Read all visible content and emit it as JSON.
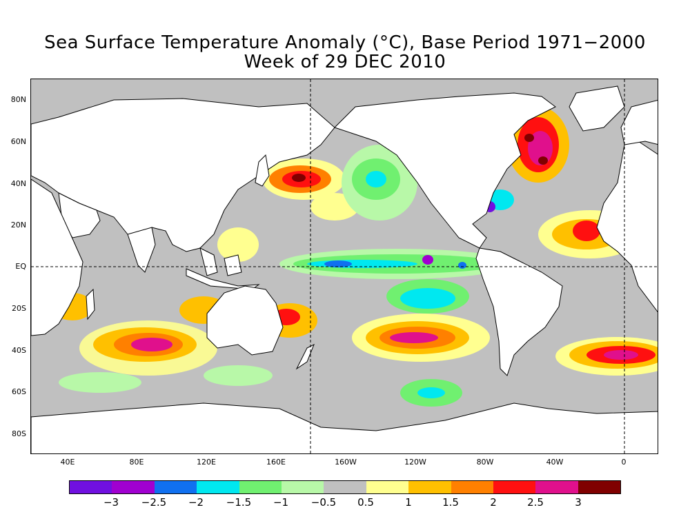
{
  "title": "Sea Surface Temperature Anomaly (°C), Base Period 1971−2000",
  "subtitle": "Week of 29 DEC 2010",
  "lat_labels": [
    "80N",
    "60N",
    "40N",
    "20N",
    "EQ",
    "20S",
    "40S",
    "60S",
    "80S"
  ],
  "lon_labels": [
    "40E",
    "80E",
    "120E",
    "160E",
    "160W",
    "120W",
    "80W",
    "40W",
    "0"
  ],
  "colorbar": {
    "colors": [
      "#7010e0",
      "#a000d0",
      "#1070f0",
      "#00e8f0",
      "#70f070",
      "#b8f8a8",
      "#c0c0c0",
      "#ffff90",
      "#ffc000",
      "#ff8000",
      "#ff1010",
      "#e0108c",
      "#800000"
    ],
    "labels": [
      "−3",
      "−2.5",
      "−2",
      "−1.5",
      "−1",
      "−0.5",
      "0.5",
      "1",
      "1.5",
      "2",
      "2.5",
      "3"
    ]
  },
  "map": {
    "projection": "cylindrical equidistant",
    "lon_range": "20E to 15E (wrapped)",
    "lat_range": "90S to 90N",
    "background_anomaly": "near zero (grey)",
    "features": [
      {
        "region": "North Atlantic / Labrador Sea",
        "anomaly": "≥ 3 warm"
      },
      {
        "region": "NW Pacific near Japan (40N 170E)",
        "anomaly": "≥ 3 warm"
      },
      {
        "region": "South Pacific (40S 120W)",
        "anomaly": "2.5–3 warm"
      },
      {
        "region": "South Indian Ocean (40S 80E)",
        "anomaly": "2.5–3 warm"
      },
      {
        "region": "South Atlantic (40S 10W)",
        "anomaly": "2.5–3 warm"
      },
      {
        "region": "Eastern tropical Atlantic off W Africa",
        "anomaly": "2.5–3 warm"
      },
      {
        "region": "Equatorial central/east Pacific",
        "anomaly": "−1.5 to −3 cold (La Niña)"
      },
      {
        "region": "Eastern North Pacific (40N 150W)",
        "anomaly": "−1 to −1.5 cold"
      }
    ]
  }
}
